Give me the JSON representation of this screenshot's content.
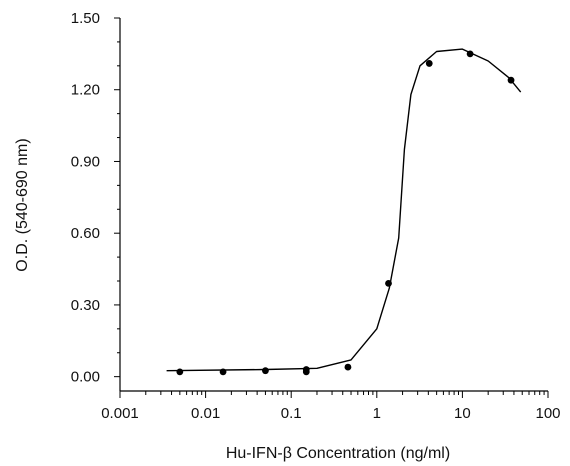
{
  "chart_data": {
    "type": "scatter",
    "xlabel": "Hu-IFN-β Concentration (ng/ml)",
    "ylabel": "O.D. (540-690 nm)",
    "x_scale": "log",
    "xlim": [
      0.001,
      100
    ],
    "ylim": [
      -0.06,
      1.5
    ],
    "x_ticks": [
      {
        "value": 0.001,
        "label": "0.001"
      },
      {
        "value": 0.01,
        "label": "0.01"
      },
      {
        "value": 0.1,
        "label": "0.1"
      },
      {
        "value": 1,
        "label": "1"
      },
      {
        "value": 10,
        "label": "10"
      },
      {
        "value": 100,
        "label": "100"
      }
    ],
    "y_ticks": [
      {
        "value": 0.0,
        "label": "0.00"
      },
      {
        "value": 0.3,
        "label": "0.30"
      },
      {
        "value": 0.6,
        "label": "0.60"
      },
      {
        "value": 0.9,
        "label": "0.90"
      },
      {
        "value": 1.2,
        "label": "1.20"
      },
      {
        "value": 1.5,
        "label": "1.50"
      }
    ],
    "series": [
      {
        "points": [
          {
            "x": 0.005,
            "y": 0.02
          },
          {
            "x": 0.016,
            "y": 0.02
          },
          {
            "x": 0.05,
            "y": 0.025
          },
          {
            "x": 0.15,
            "y": 0.02
          },
          {
            "x": 0.15,
            "y": 0.03
          },
          {
            "x": 0.46,
            "y": 0.04
          },
          {
            "x": 1.37,
            "y": 0.39
          },
          {
            "x": 4.1,
            "y": 1.31
          },
          {
            "x": 12.3,
            "y": 1.35
          },
          {
            "x": 37,
            "y": 1.24
          }
        ]
      }
    ],
    "fit_curve": [
      {
        "x": 0.0035,
        "y": 0.025
      },
      {
        "x": 0.05,
        "y": 0.03
      },
      {
        "x": 0.2,
        "y": 0.035
      },
      {
        "x": 0.5,
        "y": 0.07
      },
      {
        "x": 1.0,
        "y": 0.2
      },
      {
        "x": 1.4,
        "y": 0.37
      },
      {
        "x": 1.8,
        "y": 0.58
      },
      {
        "x": 2.1,
        "y": 0.95
      },
      {
        "x": 2.5,
        "y": 1.18
      },
      {
        "x": 3.2,
        "y": 1.3
      },
      {
        "x": 5,
        "y": 1.36
      },
      {
        "x": 10,
        "y": 1.37
      },
      {
        "x": 20,
        "y": 1.32
      },
      {
        "x": 35,
        "y": 1.25
      },
      {
        "x": 48,
        "y": 1.19
      }
    ],
    "marker_color": "#000000",
    "line_color": "#000000",
    "grid": false
  }
}
